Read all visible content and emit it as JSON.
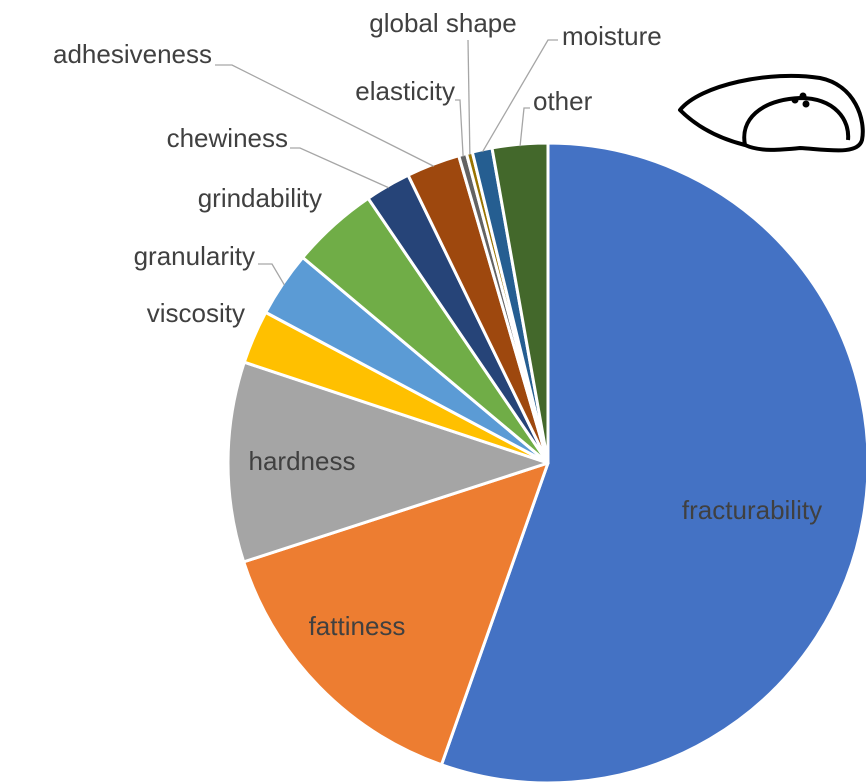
{
  "chart_data": {
    "type": "pie",
    "categories": [
      "fracturability",
      "fattiness",
      "hardness",
      "viscosity",
      "granularity",
      "grindability",
      "chewiness",
      "adhesiveness",
      "elasticity",
      "global shape",
      "moisture",
      "other"
    ],
    "values": [
      55.4,
      14.6,
      10.1,
      2.7,
      3.3,
      4.4,
      2.3,
      2.7,
      0.4,
      0.3,
      1.0,
      2.8
    ],
    "colors": [
      "#4472c4",
      "#ed7d31",
      "#a5a5a5",
      "#ffc000",
      "#5b9bd5",
      "#70ad47",
      "#264478",
      "#9e480e",
      "#636363",
      "#997300",
      "#255e91",
      "#43682b"
    ]
  }
}
